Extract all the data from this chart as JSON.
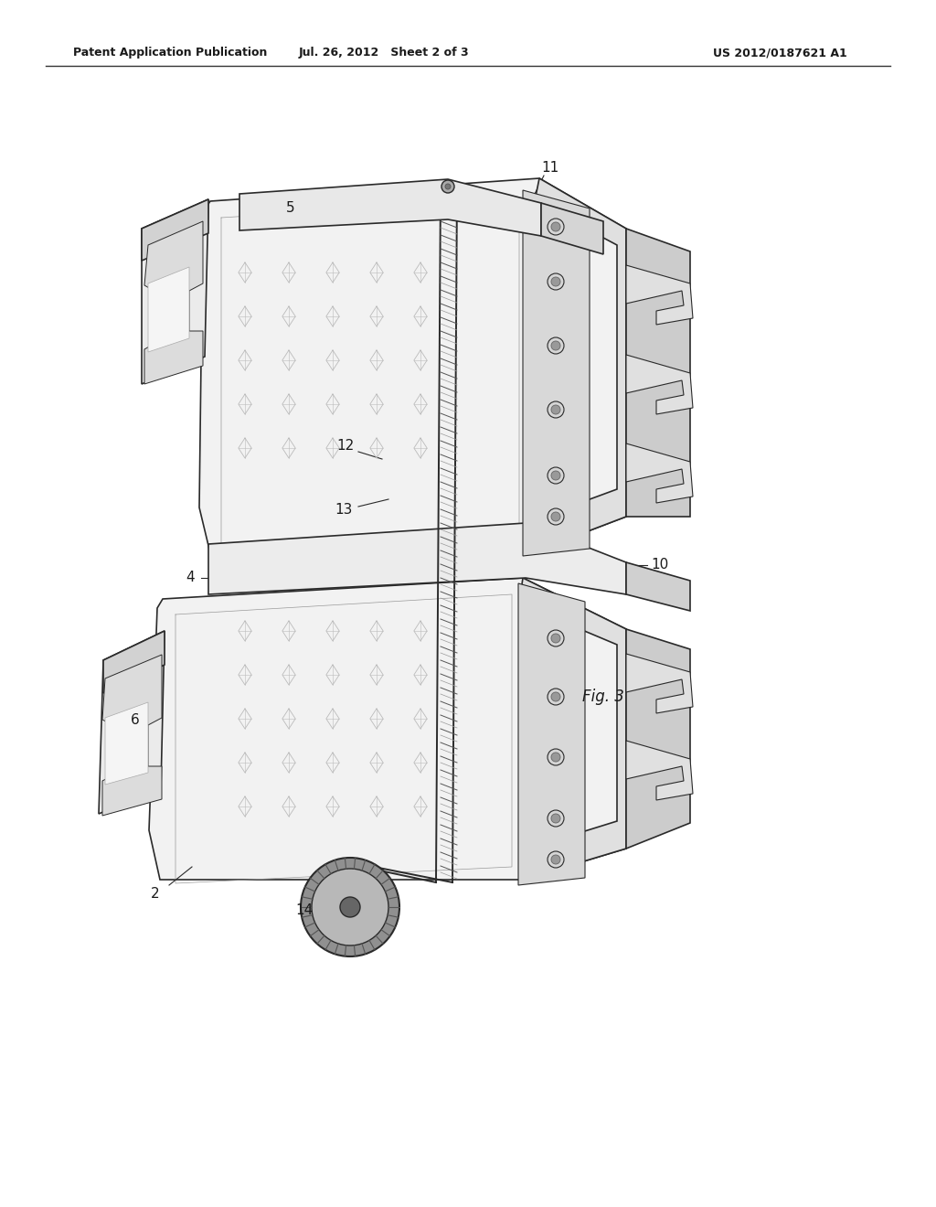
{
  "header_left": "Patent Application Publication",
  "header_middle": "Jul. 26, 2012   Sheet 2 of 3",
  "header_right": "US 2012/0187621 A1",
  "figure_label": "Fig. 3",
  "background_color": "#ffffff",
  "line_color": "#2a2a2a",
  "light_gray": "#f0f0f0",
  "mid_gray": "#d8d8d8",
  "dark_gray": "#888888"
}
